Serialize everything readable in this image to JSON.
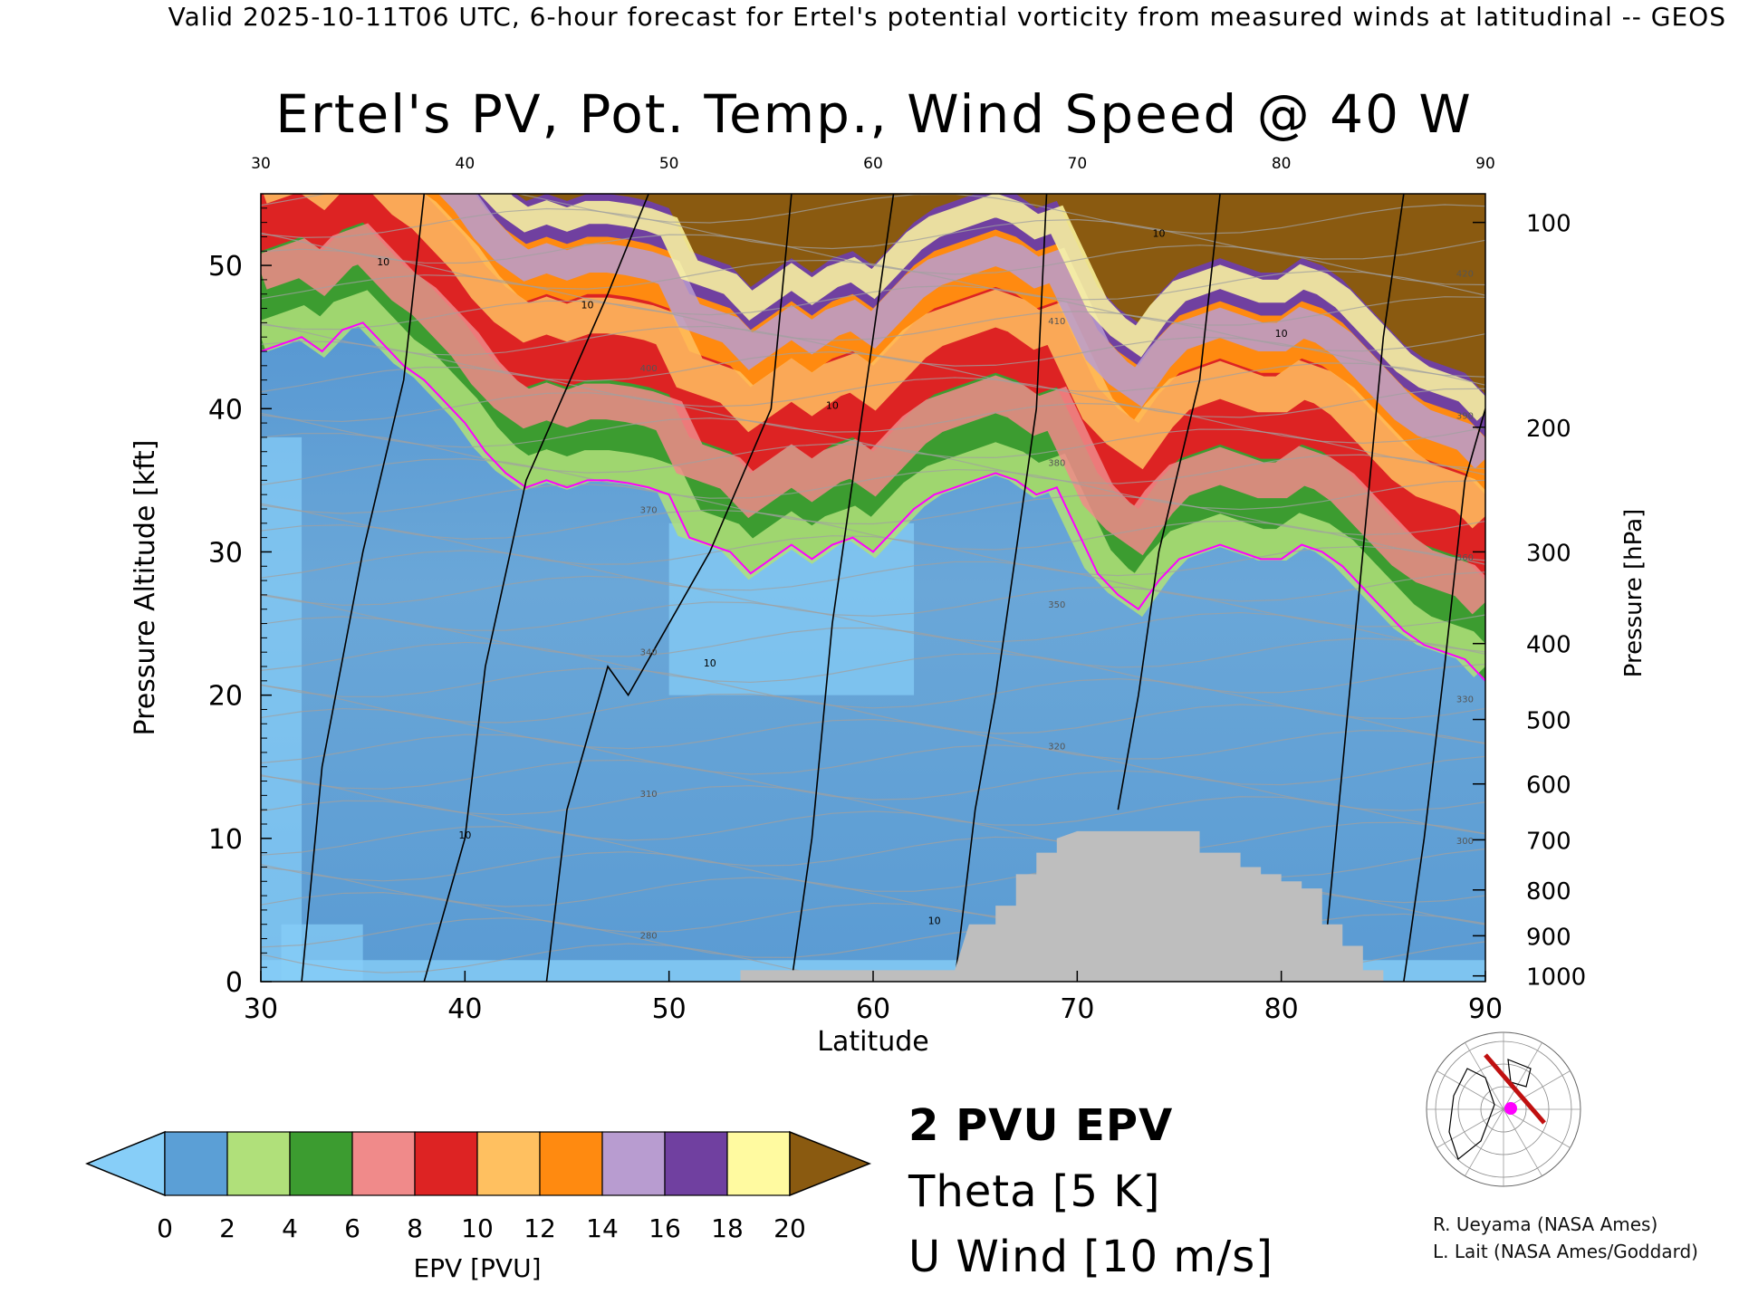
{
  "header": "Valid 2025-10-11T06 UTC, 6-hour forecast for Ertel's potential vorticity from measured winds at latitudinal -- GEOS",
  "colors": {
    "epv_contour": "#ff00ff",
    "theta": "#a0a0a0",
    "wind": "#000000",
    "terrain": "#bebebe"
  },
  "chart_data": {
    "type": "heatmap",
    "title": "Ertel's PV, Pot. Temp., Wind Speed @ 40 W",
    "xlabel": "Latitude",
    "ylabel_left": "Pressure Altitude [kft]",
    "ylabel_right": "Pressure [hPa]",
    "xlim": [
      30,
      90
    ],
    "ylim": [
      0,
      55
    ],
    "x_ticks": [
      30,
      40,
      50,
      60,
      70,
      80,
      90
    ],
    "y_ticks": [
      0,
      10,
      20,
      30,
      40,
      50
    ],
    "pressure_ticks": [
      {
        "label": "100",
        "kft": 53.0
      },
      {
        "label": "200",
        "kft": 38.7
      },
      {
        "label": "300",
        "kft": 30.0
      },
      {
        "label": "400",
        "kft": 23.6
      },
      {
        "label": "500",
        "kft": 18.3
      },
      {
        "label": "600",
        "kft": 13.8
      },
      {
        "label": "700",
        "kft": 9.9
      },
      {
        "label": "800",
        "kft": 6.4
      },
      {
        "label": "900",
        "kft": 3.2
      },
      {
        "label": "1000",
        "kft": 0.4
      }
    ],
    "tropopause_2pvu_kft": [
      [
        30,
        44
      ],
      [
        31,
        44.5
      ],
      [
        32,
        45
      ],
      [
        33,
        44
      ],
      [
        34,
        45.5
      ],
      [
        35,
        46
      ],
      [
        36,
        44.5
      ],
      [
        37,
        43
      ],
      [
        38,
        42
      ],
      [
        39,
        40.5
      ],
      [
        40,
        39
      ],
      [
        41,
        37
      ],
      [
        42,
        35.5
      ],
      [
        43,
        34.5
      ],
      [
        44,
        35
      ],
      [
        45,
        34.5
      ],
      [
        46,
        35
      ],
      [
        47,
        35
      ],
      [
        48,
        34.8
      ],
      [
        49,
        34.5
      ],
      [
        50,
        34
      ],
      [
        51,
        31
      ],
      [
        52,
        30.5
      ],
      [
        53,
        30
      ],
      [
        54,
        28.5
      ],
      [
        55,
        29.5
      ],
      [
        56,
        30.5
      ],
      [
        57,
        29.5
      ],
      [
        58,
        30.5
      ],
      [
        59,
        31
      ],
      [
        60,
        30
      ],
      [
        61,
        31.5
      ],
      [
        62,
        33
      ],
      [
        63,
        34
      ],
      [
        64,
        34.5
      ],
      [
        65,
        35
      ],
      [
        66,
        35.5
      ],
      [
        67,
        35
      ],
      [
        68,
        34
      ],
      [
        69,
        34.5
      ],
      [
        70,
        31.5
      ],
      [
        71,
        28.5
      ],
      [
        72,
        27
      ],
      [
        73,
        26
      ],
      [
        74,
        28
      ],
      [
        75,
        29.5
      ],
      [
        76,
        30
      ],
      [
        77,
        30.5
      ],
      [
        78,
        30
      ],
      [
        79,
        29.5
      ],
      [
        80,
        29.5
      ],
      [
        81,
        30.5
      ],
      [
        82,
        30
      ],
      [
        83,
        29
      ],
      [
        84,
        27.5
      ],
      [
        85,
        26
      ],
      [
        86,
        24.5
      ],
      [
        87,
        23.5
      ],
      [
        88,
        23
      ],
      [
        89,
        22.5
      ],
      [
        90,
        21
      ]
    ],
    "pv_layers_above_tropopause_kft": [
      {
        "pvu": "2-6",
        "offset": 0
      },
      {
        "pvu": "6-10",
        "offset": 7
      },
      {
        "pvu": "10-14",
        "offset": 13
      },
      {
        "pvu": "14-18",
        "offset": 17
      },
      {
        "pvu": ">20",
        "offset": 20
      }
    ],
    "terrain_kft": [
      [
        53.5,
        0.8
      ],
      [
        55,
        0.8
      ],
      [
        58,
        0.8
      ],
      [
        60,
        0.8
      ],
      [
        61,
        0.8
      ],
      [
        62,
        0.8
      ],
      [
        63,
        0.8
      ],
      [
        64,
        0.8
      ],
      [
        64.7,
        4
      ],
      [
        66,
        4
      ],
      [
        66,
        5.3
      ],
      [
        67,
        5.3
      ],
      [
        67,
        7.5
      ],
      [
        68,
        7.5
      ],
      [
        68,
        9
      ],
      [
        69,
        9
      ],
      [
        69,
        10
      ],
      [
        70,
        10.5
      ],
      [
        72,
        10.5
      ],
      [
        74,
        10.5
      ],
      [
        76,
        10.5
      ],
      [
        76,
        9
      ],
      [
        78,
        9
      ],
      [
        78,
        8
      ],
      [
        79,
        8
      ],
      [
        79,
        7.5
      ],
      [
        80,
        7.5
      ],
      [
        80,
        7
      ],
      [
        81,
        7
      ],
      [
        81,
        6.5
      ],
      [
        82,
        6.5
      ],
      [
        82,
        4
      ],
      [
        83,
        4
      ],
      [
        83,
        2.5
      ],
      [
        84,
        2.5
      ],
      [
        84,
        0.8
      ],
      [
        85,
        0.8
      ]
    ],
    "theta_labels": [
      "280",
      "290",
      "300",
      "310",
      "320",
      "330",
      "340",
      "350",
      "360",
      "370",
      "380",
      "390",
      "400",
      "410",
      "420"
    ],
    "wind_contour_label": "10",
    "colorbar": {
      "label": "EPV [PVU]",
      "ticks": [
        "0",
        "2",
        "4",
        "6",
        "8",
        "10",
        "12",
        "14",
        "16",
        "18",
        "20"
      ],
      "colors": [
        "#87cef8",
        "#5b9fd6",
        "#b0e07a",
        "#3c9c30",
        "#f08a8a",
        "#dd2323",
        "#ffc060",
        "#ff8a10",
        "#b89cd0",
        "#7040a0",
        "#fffaa0",
        "#8a5a10"
      ]
    },
    "legend": [
      {
        "name": "2 PVU EPV",
        "color": "#ff00ff"
      },
      {
        "name": "Theta [5 K]",
        "color": "#a0a0a0"
      },
      {
        "name": "U Wind [10 m/s]",
        "color": "#000000"
      }
    ]
  },
  "map_inset": {
    "marker_latitude": 40,
    "marker_color": "#ff00ff",
    "track_color": "#c01010"
  },
  "credits": [
    "R. Ueyama (NASA Ames)",
    "L. Lait (NASA Ames/Goddard)"
  ]
}
